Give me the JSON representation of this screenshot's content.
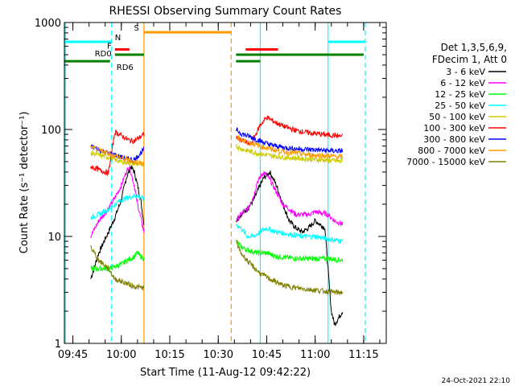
{
  "chart_data": {
    "type": "line",
    "title": "RHESSI Observing Summary Count Rates",
    "xlabel": "Start Time (11-Aug-12 09:42:22)",
    "ylabel": "Count Rate (s⁻¹ detector⁻¹)",
    "y_scale": "log",
    "ylim": [
      1,
      1000
    ],
    "xlim": [
      "09:42:22",
      "11:22:00"
    ],
    "x_ticks": [
      "09:45",
      "10:00",
      "10:15",
      "10:30",
      "10:45",
      "11:00",
      "11:15"
    ],
    "y_ticks": [
      "1",
      "10",
      "100",
      "1000"
    ],
    "legend_header": [
      "Det 1,3,5,6,9,",
      "FDecim 1, Att 0"
    ],
    "legend_position": "right",
    "footer_date": "24-Oct-2021 22:10",
    "flag_labels": {
      "N": "N",
      "S": "S",
      "F": "F",
      "RD0": "RD0",
      "RD6": "RD6"
    },
    "data_gaps": [
      [
        "09:42:22",
        "09:50:30"
      ],
      [
        "10:07:00",
        "10:35:30"
      ],
      [
        "11:08:30",
        "11:22:00"
      ]
    ],
    "vertical_markers": [
      {
        "time": "09:42:40",
        "color": "#00ffff",
        "style": "solid"
      },
      {
        "time": "09:57:00",
        "color": "#00ffff",
        "style": "dashed"
      },
      {
        "time": "10:07:00",
        "color": "#ff9900",
        "style": "solid"
      },
      {
        "time": "10:34:00",
        "color": "#ff9900",
        "style": "dashed"
      },
      {
        "time": "10:43:00",
        "color": "#00ffff",
        "style": "solid"
      },
      {
        "time": "11:04:00",
        "color": "#00ffff",
        "style": "solid"
      },
      {
        "time": "11:15:30",
        "color": "#00ffff",
        "style": "dashed"
      }
    ],
    "flags": [
      {
        "label": "N",
        "color": "#00ffff",
        "level": 660,
        "intervals": [
          [
            "09:42:22",
            "09:57:00"
          ],
          [
            "11:04:00",
            "11:15:30"
          ]
        ]
      },
      {
        "label": "S",
        "color": "#ff9900",
        "level": 810,
        "intervals": [
          [
            "10:07:00",
            "10:34:00"
          ]
        ]
      },
      {
        "label": "F",
        "color": "#ff0000",
        "level": 560,
        "intervals": [
          [
            "09:58:00",
            "10:02:30"
          ],
          [
            "10:38:30",
            "10:48:30"
          ]
        ]
      },
      {
        "label": "RD0",
        "color": "#008000",
        "level": 500,
        "intervals": [
          [
            "09:58:00",
            "10:07:00"
          ],
          [
            "10:35:30",
            "11:15:00"
          ]
        ]
      },
      {
        "label": "RD6",
        "color": "#008000",
        "level": 435,
        "intervals": [
          [
            "09:42:22",
            "09:56:30"
          ],
          [
            "10:35:30",
            "10:43:00"
          ]
        ]
      }
    ],
    "series": [
      {
        "name": "3 - 6 keV",
        "color": "#000000",
        "x": [
          "09:50:30",
          "09:53:00",
          "09:56:00",
          "09:58:00",
          "10:00:00",
          "10:01:30",
          "10:03:00",
          "10:04:00",
          "10:05:00",
          "10:06:00",
          "10:07:00",
          "10:35:30",
          "10:37:00",
          "10:39:00",
          "10:41:00",
          "10:42:30",
          "10:44:00",
          "10:46:00",
          "10:48:00",
          "10:50:00",
          "10:52:00",
          "10:54:00",
          "10:56:00",
          "10:58:00",
          "11:00:00",
          "11:03:00",
          "11:05:00",
          "11:06:00",
          "11:08:30"
        ],
        "values": [
          4,
          7,
          11,
          15,
          22,
          35,
          45,
          40,
          30,
          22,
          13,
          14,
          16,
          18,
          22,
          28,
          35,
          40,
          30,
          20,
          14,
          12,
          11,
          12,
          14,
          12,
          2,
          1.5,
          2
        ]
      },
      {
        "name": "6 - 12 keV",
        "color": "#ff00ff",
        "x": [
          "09:50:30",
          "09:53:00",
          "09:56:00",
          "09:58:00",
          "10:00:00",
          "10:01:30",
          "10:02:30",
          "10:04:00",
          "10:05:00",
          "10:06:00",
          "10:07:00",
          "10:35:30",
          "10:37:00",
          "10:39:00",
          "10:41:00",
          "10:42:00",
          "10:44:00",
          "10:46:00",
          "10:48:00",
          "10:50:00",
          "10:52:00",
          "10:54:00",
          "10:56:00",
          "10:58:00",
          "11:00:00",
          "11:04:00",
          "11:06:00",
          "11:08:30"
        ],
        "values": [
          10,
          14,
          18,
          23,
          30,
          40,
          45,
          30,
          20,
          15,
          11,
          14,
          16,
          18,
          24,
          32,
          40,
          34,
          26,
          20,
          18,
          16,
          16,
          16,
          17,
          16,
          14,
          13
        ]
      },
      {
        "name": "12 - 25 keV",
        "color": "#00ff00",
        "x": [
          "09:50:30",
          "09:53:00",
          "09:56:00",
          "09:58:00",
          "10:00:00",
          "10:02:00",
          "10:04:00",
          "10:05:00",
          "10:06:00",
          "10:07:00",
          "10:35:30",
          "10:37:00",
          "10:39:00",
          "10:42:00",
          "10:45:00",
          "10:48:00",
          "10:52:00",
          "10:56:00",
          "11:00:00",
          "11:04:00",
          "11:08:30"
        ],
        "values": [
          5,
          5,
          5,
          5.2,
          5.5,
          6,
          6.5,
          7,
          6.5,
          6.2,
          9,
          8,
          7.5,
          7,
          7,
          6.5,
          6.3,
          6.2,
          6.2,
          6.2,
          6
        ]
      },
      {
        "name": "25 - 50 keV",
        "color": "#00ffff",
        "x": [
          "09:50:30",
          "09:53:00",
          "09:56:00",
          "09:58:00",
          "10:00:00",
          "10:02:00",
          "10:04:00",
          "10:05:00",
          "10:06:00",
          "10:07:00",
          "10:35:30",
          "10:37:00",
          "10:39:00",
          "10:41:00",
          "10:43:00",
          "10:45:00",
          "10:48:00",
          "10:52:00",
          "10:56:00",
          "11:00:00",
          "11:04:00",
          "11:08:30"
        ],
        "values": [
          15,
          16,
          18,
          20,
          22,
          23,
          24,
          24,
          23,
          22,
          13,
          12,
          10,
          10,
          11,
          12,
          11,
          10.5,
          10,
          10,
          9.5,
          9
        ]
      },
      {
        "name": "50 - 100 keV",
        "color": "#cccc00",
        "x": [
          "09:50:30",
          "09:53:00",
          "09:56:00",
          "09:58:00",
          "10:00:00",
          "10:02:00",
          "10:04:00",
          "10:07:00",
          "10:35:30",
          "10:37:00",
          "10:40:00",
          "10:43:00",
          "10:46:00",
          "10:50:00",
          "10:54:00",
          "10:58:00",
          "11:02:00",
          "11:06:00",
          "11:08:30"
        ],
        "values": [
          60,
          58,
          55,
          52,
          50,
          49,
          48,
          47,
          70,
          66,
          62,
          59,
          57,
          55,
          54,
          53,
          52,
          51,
          50
        ]
      },
      {
        "name": "100 - 300 keV",
        "color": "#ff0000",
        "x": [
          "09:50:30",
          "09:53:00",
          "09:56:00",
          "09:58:00",
          "10:00:00",
          "10:02:00",
          "10:04:00",
          "10:07:00",
          "10:35:30",
          "10:37:00",
          "10:40:00",
          "10:43:00",
          "10:45:00",
          "10:48:00",
          "10:51:00",
          "10:54:00",
          "10:58:00",
          "11:02:00",
          "11:06:00",
          "11:08:30"
        ],
        "values": [
          45,
          42,
          39,
          95,
          88,
          80,
          78,
          90,
          85,
          80,
          72,
          110,
          130,
          115,
          105,
          98,
          93,
          90,
          88,
          86
        ]
      },
      {
        "name": "300 - 800 keV",
        "color": "#0000ff",
        "x": [
          "09:50:30",
          "09:53:00",
          "09:56:00",
          "09:58:00",
          "10:00:00",
          "10:02:00",
          "10:04:00",
          "10:07:00",
          "10:35:30",
          "10:37:00",
          "10:40:00",
          "10:43:00",
          "10:46:00",
          "10:50:00",
          "10:54:00",
          "10:58:00",
          "11:02:00",
          "11:06:00",
          "11:08:30"
        ],
        "values": [
          70,
          65,
          60,
          58,
          55,
          53,
          52,
          65,
          100,
          92,
          85,
          78,
          72,
          68,
          66,
          65,
          64,
          63,
          63
        ]
      },
      {
        "name": "800 - 7000 keV",
        "color": "#ff9900",
        "x": [
          "09:50:30",
          "09:53:00",
          "09:56:00",
          "09:58:00",
          "10:00:00",
          "10:02:00",
          "10:04:00",
          "10:07:00",
          "10:35:30",
          "10:37:00",
          "10:40:00",
          "10:43:00",
          "10:46:00",
          "10:50:00",
          "10:54:00",
          "10:58:00",
          "11:02:00",
          "11:06:00",
          "11:08:30"
        ],
        "values": [
          68,
          64,
          60,
          57,
          54,
          52,
          50,
          48,
          85,
          80,
          75,
          70,
          66,
          62,
          60,
          58,
          57,
          56,
          55
        ]
      },
      {
        "name": "7000 - 15000 keV",
        "color": "#808000",
        "x": [
          "09:50:30",
          "09:53:00",
          "09:56:00",
          "09:58:00",
          "10:00:00",
          "10:02:00",
          "10:04:00",
          "10:07:00",
          "10:35:30",
          "10:37:00",
          "10:40:00",
          "10:43:00",
          "10:46:00",
          "10:50:00",
          "10:54:00",
          "10:58:00",
          "11:02:00",
          "11:06:00",
          "11:08:30"
        ],
        "values": [
          8,
          6,
          5,
          4,
          3.8,
          3.6,
          3.4,
          3.3,
          9,
          7,
          5.5,
          4.5,
          4,
          3.5,
          3.3,
          3.2,
          3.1,
          3.0,
          3.0
        ]
      }
    ]
  }
}
